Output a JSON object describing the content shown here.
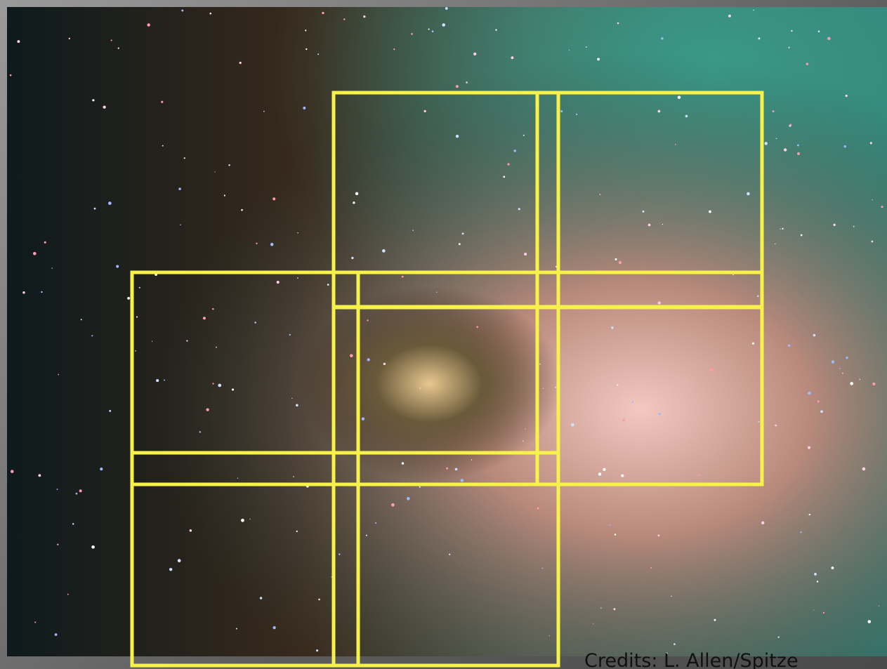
{
  "credits": "Credits: L. Allen/Spitze"
}
